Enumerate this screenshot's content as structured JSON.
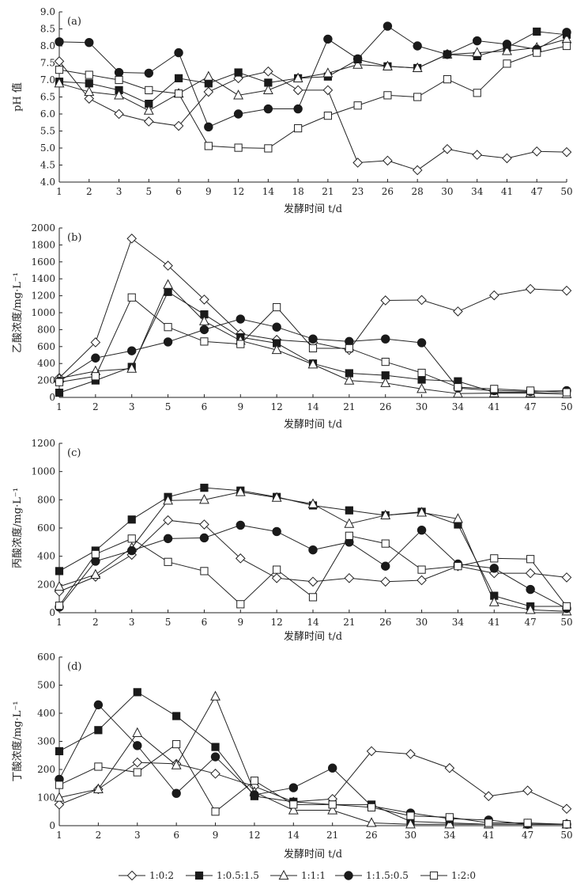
{
  "series_styles": [
    {
      "name": "1:0:2",
      "marker": "diamond-open"
    },
    {
      "name": "1:0.5:1.5",
      "marker": "square-filled"
    },
    {
      "name": "1:1:1",
      "marker": "triangle-open"
    },
    {
      "name": "1:1.5:0.5",
      "marker": "circle-filled"
    },
    {
      "name": "1:2:0",
      "marker": "square-open"
    }
  ],
  "chart_data": [
    {
      "type": "line",
      "panel_label": "(a)",
      "ylabel": "pH 值",
      "xlabel": "发酵时间 t/d",
      "categories": [
        "1",
        "2",
        "3",
        "5",
        "6",
        "9",
        "12",
        "14",
        "18",
        "21",
        "23",
        "26",
        "28",
        "30",
        "34",
        "41",
        "47",
        "50"
      ],
      "ylim": [
        4.0,
        9.0
      ],
      "yticks": [
        "4.0",
        "4.5",
        "5.0",
        "5.5",
        "6.0",
        "6.5",
        "7.0",
        "7.5",
        "8.0",
        "8.5",
        "9.0"
      ],
      "series": [
        {
          "name": "1:0:2",
          "values": [
            7.55,
            6.45,
            6.0,
            5.78,
            5.65,
            6.65,
            7.05,
            7.25,
            6.7,
            6.7,
            4.57,
            4.63,
            4.35,
            4.97,
            4.8,
            4.7,
            4.9,
            4.88
          ]
        },
        {
          "name": "1:0.5:1.5",
          "values": [
            6.95,
            6.9,
            6.7,
            6.3,
            7.05,
            6.9,
            7.22,
            6.92,
            7.05,
            7.1,
            7.6,
            7.4,
            7.35,
            7.75,
            7.7,
            7.95,
            8.42,
            8.33
          ]
        },
        {
          "name": "1:1:1",
          "values": [
            6.9,
            6.65,
            6.55,
            6.1,
            6.6,
            7.1,
            6.55,
            6.7,
            7.05,
            7.2,
            7.45,
            7.4,
            7.35,
            7.75,
            7.8,
            7.85,
            7.95,
            8.2
          ]
        },
        {
          "name": "1:1.5:0.5",
          "values": [
            8.12,
            8.1,
            7.22,
            7.2,
            7.8,
            5.62,
            6.0,
            6.15,
            6.15,
            8.2,
            7.62,
            8.58,
            8.0,
            7.75,
            8.15,
            8.05,
            7.9,
            8.4
          ]
        },
        {
          "name": "1:2:0",
          "values": [
            7.3,
            7.15,
            7.0,
            6.7,
            6.6,
            5.06,
            5.01,
            4.99,
            5.58,
            5.95,
            6.25,
            6.55,
            6.5,
            7.02,
            6.62,
            7.48,
            7.8,
            8.0
          ]
        }
      ]
    },
    {
      "type": "line",
      "panel_label": "(b)",
      "ylabel": "乙酸浓度/mg·L⁻¹",
      "xlabel": "发酵时间 t/d",
      "categories": [
        "1",
        "2",
        "3",
        "5",
        "6",
        "9",
        "12",
        "14",
        "21",
        "26",
        "30",
        "34",
        "41",
        "47",
        "50"
      ],
      "ylim": [
        0,
        2000
      ],
      "yticks": [
        "0",
        "200",
        "400",
        "600",
        "800",
        "1000",
        "1200",
        "1400",
        "1600",
        "1800",
        "2000"
      ],
      "series": [
        {
          "name": "1:0:2",
          "values": [
            230,
            650,
            1875,
            1555,
            1155,
            750,
            680,
            650,
            560,
            1145,
            1150,
            1015,
            1205,
            1280,
            1260
          ]
        },
        {
          "name": "1:0.5:1.5",
          "values": [
            55,
            200,
            360,
            1245,
            980,
            710,
            640,
            400,
            285,
            260,
            210,
            190,
            60,
            60,
            40
          ]
        },
        {
          "name": "1:1:1",
          "values": [
            225,
            310,
            340,
            1330,
            900,
            670,
            560,
            390,
            200,
            170,
            100,
            45,
            50,
            50,
            40
          ]
        },
        {
          "name": "1:1.5:0.5",
          "values": [
            190,
            465,
            550,
            655,
            800,
            925,
            830,
            690,
            660,
            690,
            645,
            110,
            80,
            70,
            80
          ]
        },
        {
          "name": "1:2:0",
          "values": [
            180,
            250,
            1180,
            830,
            660,
            630,
            1065,
            580,
            580,
            420,
            290,
            120,
            100,
            80,
            60
          ]
        }
      ]
    },
    {
      "type": "line",
      "panel_label": "(c)",
      "ylabel": "丙酸浓度/mg·L⁻¹",
      "xlabel": "发酵时间 t/d",
      "categories": [
        "1",
        "2",
        "3",
        "5",
        "6",
        "9",
        "12",
        "14",
        "21",
        "26",
        "30",
        "34",
        "41",
        "47",
        "50"
      ],
      "ylim": [
        0,
        1200
      ],
      "yticks": [
        "0",
        "200",
        "400",
        "600",
        "800",
        "1000",
        "1200"
      ],
      "series": [
        {
          "name": "1:0:2",
          "values": [
            150,
            255,
            410,
            655,
            625,
            385,
            245,
            220,
            245,
            220,
            230,
            330,
            280,
            280,
            250
          ]
        },
        {
          "name": "1:0.5:1.5",
          "values": [
            295,
            440,
            660,
            820,
            885,
            865,
            820,
            760,
            725,
            690,
            715,
            625,
            120,
            45,
            45
          ]
        },
        {
          "name": "1:1:1",
          "values": [
            185,
            270,
            460,
            795,
            800,
            855,
            815,
            770,
            630,
            690,
            710,
            665,
            75,
            20,
            10
          ]
        },
        {
          "name": "1:1.5:0.5",
          "values": [
            40,
            365,
            440,
            525,
            530,
            620,
            575,
            445,
            500,
            330,
            585,
            345,
            315,
            165,
            30
          ]
        },
        {
          "name": "1:2:0",
          "values": [
            50,
            415,
            525,
            360,
            295,
            60,
            305,
            110,
            545,
            490,
            305,
            330,
            385,
            380,
            45
          ]
        }
      ]
    },
    {
      "type": "line",
      "panel_label": "(d)",
      "ylabel": "丁酸浓度/mg·L⁻¹",
      "xlabel": "发酵时间 t/d",
      "categories": [
        "1",
        "2",
        "3",
        "6",
        "9",
        "12",
        "14",
        "21",
        "26",
        "30",
        "34",
        "41",
        "47",
        "50"
      ],
      "ylim": [
        0,
        600
      ],
      "yticks": [
        "0",
        "100",
        "200",
        "300",
        "400",
        "500",
        "600"
      ],
      "series": [
        {
          "name": "1:0:2",
          "values": [
            75,
            130,
            225,
            220,
            185,
            140,
            85,
            95,
            265,
            255,
            205,
            105,
            125,
            60
          ]
        },
        {
          "name": "1:0.5:1.5",
          "values": [
            265,
            340,
            475,
            390,
            280,
            105,
            85,
            75,
            75,
            15,
            10,
            5,
            5,
            5
          ]
        },
        {
          "name": "1:1:1",
          "values": [
            100,
            130,
            330,
            215,
            460,
            120,
            55,
            55,
            10,
            5,
            5,
            5,
            5,
            5
          ]
        },
        {
          "name": "1:1.5:0.5",
          "values": [
            165,
            430,
            285,
            115,
            245,
            110,
            135,
            205,
            70,
            45,
            25,
            20,
            5,
            5
          ]
        },
        {
          "name": "1:2:0",
          "values": [
            145,
            210,
            190,
            290,
            50,
            160,
            75,
            75,
            65,
            35,
            30,
            10,
            10,
            5
          ]
        }
      ]
    }
  ]
}
